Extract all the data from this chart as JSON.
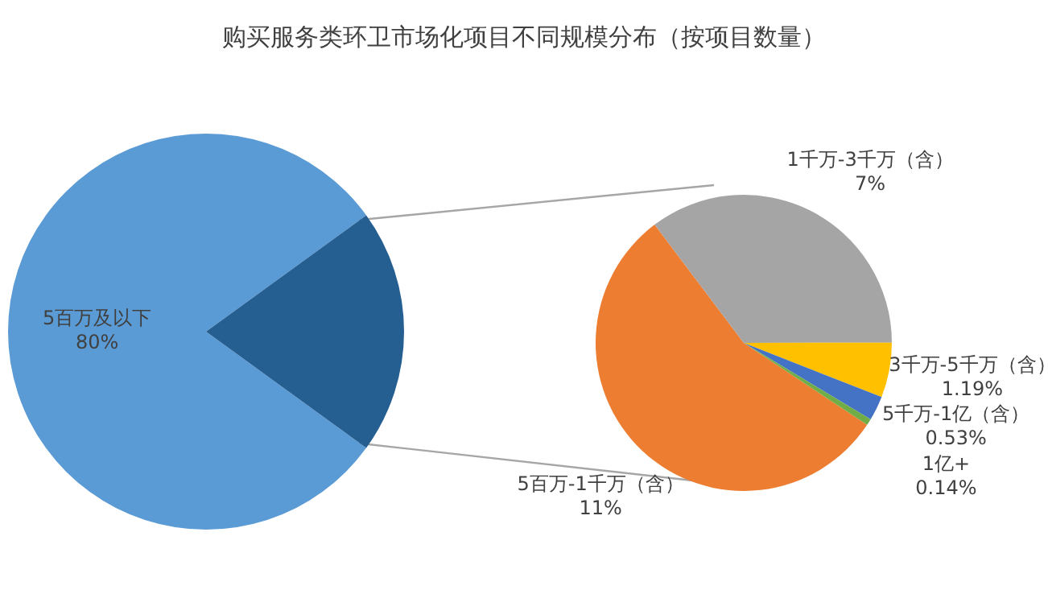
{
  "chart_data": [
    {
      "type": "pie",
      "title": "购买服务类环卫市场化项目不同规模分布（按项目数量）",
      "categories": [
        "5百万及以下",
        null
      ],
      "values": [
        80,
        20
      ],
      "colors": [
        "#5b9bd5",
        "#255e91"
      ],
      "value_labels": [
        "80%",
        null
      ]
    },
    {
      "type": "pie",
      "categories": [
        "5百万-1千万（含）",
        "1千万-3千万（含）",
        "3千万-5千万（含）",
        "5千万-1亿（含）",
        "1亿+"
      ],
      "values": [
        11,
        7,
        1.19,
        0.53,
        0.14
      ],
      "colors": [
        "#ed7d31",
        "#a5a5a5",
        "#ffc000",
        "#4472c4",
        "#70ad47"
      ],
      "value_labels": [
        "11%",
        "7%",
        "1.19%",
        "0.53%",
        "0.14%"
      ]
    }
  ]
}
